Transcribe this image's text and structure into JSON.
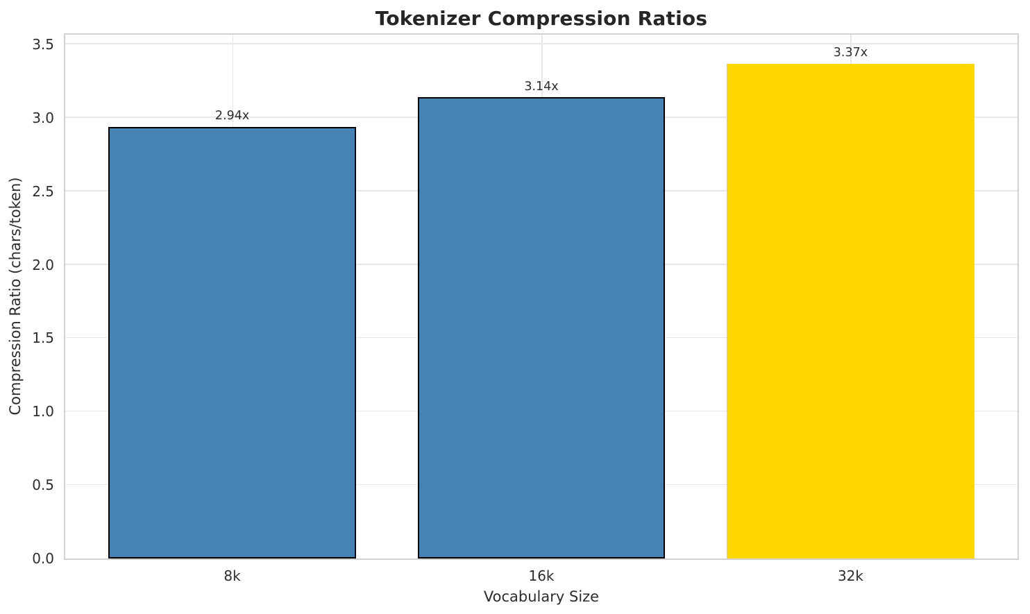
{
  "figure": {
    "background": "#ffffff",
    "grid_color": "#e7e7e7",
    "spine_color": "#d2d2d2",
    "text_color": "#2d2d2d",
    "title_color": "#262626"
  },
  "chart_data": {
    "type": "bar",
    "title": "Tokenizer Compression Ratios",
    "xlabel": "Vocabulary Size",
    "ylabel": "Compression Ratio (chars/token)",
    "categories": [
      "8k",
      "16k",
      "32k"
    ],
    "values": [
      2.94,
      3.14,
      3.37
    ],
    "bar_labels": [
      "2.94x",
      "3.14x",
      "3.37x"
    ],
    "bar_colors": [
      "#4682b4",
      "#4682b4",
      "#ffd700"
    ],
    "bar_edge_colors": [
      "#000000",
      "#000000",
      "none"
    ],
    "highlight_index": 2,
    "bar_width": 0.8,
    "xlim": [
      -0.54,
      2.54
    ],
    "ylim": [
      0,
      3.566
    ],
    "yticks": [
      0,
      0.5,
      1,
      1.5,
      2,
      2.5,
      3,
      3.5
    ],
    "ytick_labels": [
      "0.0",
      "0.5",
      "1.0",
      "1.5",
      "2.0",
      "2.5",
      "3.0",
      "3.5"
    ],
    "grid": true,
    "legend_position": "none"
  }
}
